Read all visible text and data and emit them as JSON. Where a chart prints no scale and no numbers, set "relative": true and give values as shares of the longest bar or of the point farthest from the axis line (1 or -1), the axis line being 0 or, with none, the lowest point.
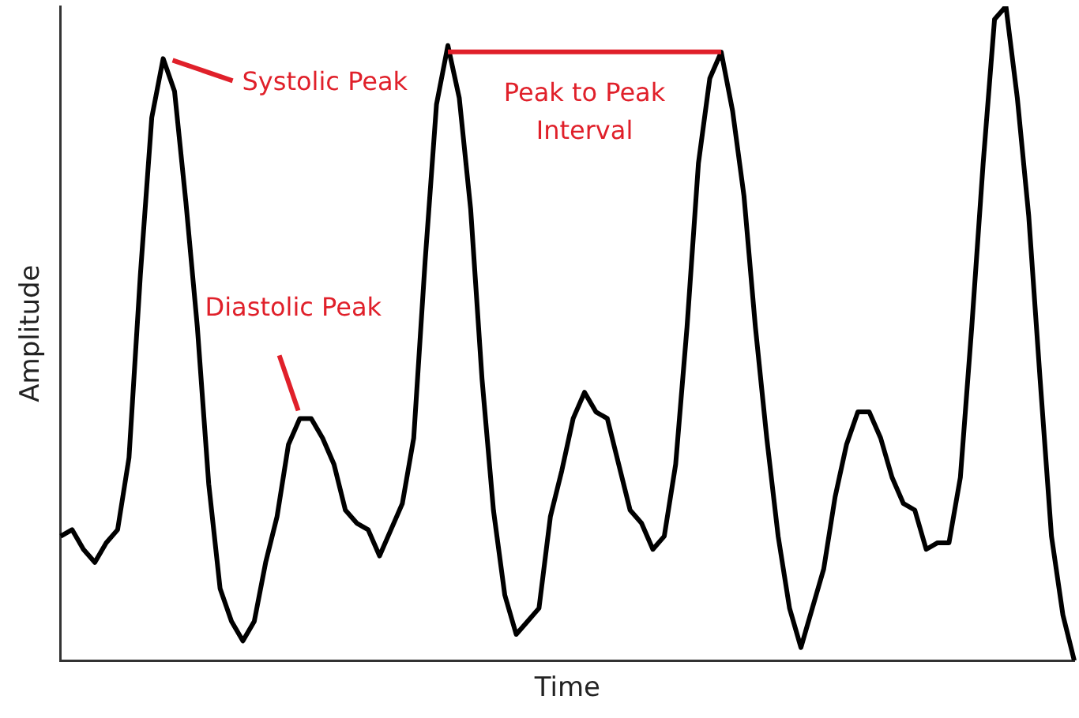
{
  "chart_data": {
    "type": "line",
    "relative": true,
    "xlabel": "Time",
    "ylabel": "Amplitude",
    "color": "#000000",
    "marker": "none",
    "grid": false,
    "legend": false,
    "categories": [
      null,
      null,
      null,
      null,
      null,
      null,
      null,
      null,
      null,
      null,
      null,
      null,
      null,
      null,
      null,
      null,
      null,
      null,
      null,
      null,
      null,
      null,
      null,
      null,
      null,
      null,
      null,
      null,
      null,
      null,
      null,
      null,
      null,
      null,
      null,
      null,
      null,
      null,
      null,
      null,
      null,
      null,
      null,
      null,
      null,
      null,
      null,
      null,
      null,
      null,
      null,
      null,
      null,
      null,
      null,
      null,
      null,
      null,
      null,
      null,
      null,
      null,
      null,
      null,
      null,
      null,
      null,
      null,
      null,
      null,
      null,
      null,
      null,
      null,
      null,
      null,
      null,
      null,
      null,
      null,
      null,
      null,
      null,
      null,
      null,
      null,
      null,
      null,
      null,
      null
    ],
    "values": [
      0.19,
      0.2,
      0.17,
      0.15,
      0.18,
      0.2,
      0.31,
      0.59,
      0.83,
      0.92,
      0.87,
      0.7,
      0.51,
      0.27,
      0.11,
      0.06,
      0.03,
      0.06,
      0.15,
      0.22,
      0.33,
      0.37,
      0.37,
      0.34,
      0.3,
      0.23,
      0.21,
      0.2,
      0.16,
      0.2,
      0.24,
      0.34,
      0.61,
      0.85,
      0.94,
      0.86,
      0.69,
      0.43,
      0.23,
      0.1,
      0.04,
      0.06,
      0.08,
      0.22,
      0.29,
      0.37,
      0.41,
      0.38,
      0.37,
      0.3,
      0.23,
      0.21,
      0.17,
      0.19,
      0.3,
      0.51,
      0.76,
      0.89,
      0.93,
      0.84,
      0.71,
      0.51,
      0.34,
      0.19,
      0.08,
      0.02,
      0.08,
      0.14,
      0.25,
      0.33,
      0.38,
      0.38,
      0.34,
      0.28,
      0.24,
      0.23,
      0.17,
      0.18,
      0.18,
      0.28,
      0.51,
      0.76,
      0.98,
      1,
      0.86,
      0.68,
      0.43,
      0.19,
      0.07,
      0
    ],
    "annotations": [
      "Systolic Peak",
      "Diastolic Peak",
      "Peak to Peak Interval"
    ]
  }
}
